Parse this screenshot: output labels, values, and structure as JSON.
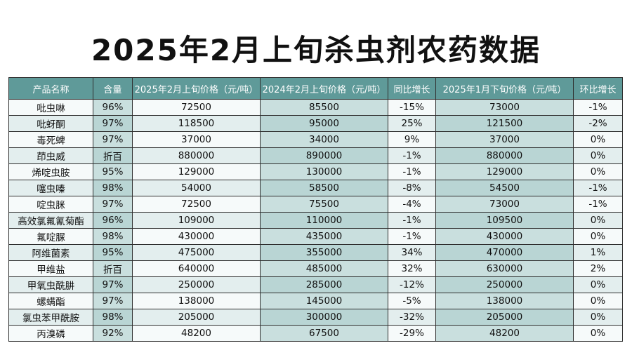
{
  "title": "2025年2月上旬杀虫剂农药数据",
  "columns": [
    "产品名称",
    "含量",
    "2025年2月上旬价格（元/吨）",
    "2024年2月上旬价格（元/吨）",
    "同比增长",
    "2025年1月下旬价格（元/吨）",
    "环比增长"
  ],
  "rows": [
    [
      "吡虫啉",
      "96%",
      "72500",
      "85500",
      "-15%",
      "73000",
      "-1%"
    ],
    [
      "吡蚜酮",
      "97%",
      "118500",
      "95000",
      "25%",
      "121500",
      "-2%"
    ],
    [
      "毒死蜱",
      "97%",
      "37000",
      "34000",
      "9%",
      "37000",
      "0%"
    ],
    [
      "茚虫威",
      "折百",
      "880000",
      "890000",
      "-1%",
      "880000",
      "0%"
    ],
    [
      "烯啶虫胺",
      "95%",
      "129000",
      "130000",
      "-1%",
      "129000",
      "0%"
    ],
    [
      "噻虫嗪",
      "98%",
      "54000",
      "58500",
      "-8%",
      "54500",
      "-1%"
    ],
    [
      "啶虫脒",
      "97%",
      "72500",
      "75500",
      "-4%",
      "73000",
      "-1%"
    ],
    [
      "高效氯氟氰菊酯",
      "96%",
      "109000",
      "110000",
      "-1%",
      "109500",
      "0%"
    ],
    [
      "氟啶脲",
      "98%",
      "430000",
      "435000",
      "-1%",
      "430000",
      "0%"
    ],
    [
      "阿维菌素",
      "95%",
      "475000",
      "355000",
      "34%",
      "470000",
      "1%"
    ],
    [
      "甲维盐",
      "折百",
      "640000",
      "485000",
      "32%",
      "630000",
      "2%"
    ],
    [
      "甲氧虫酰肼",
      "97%",
      "250000",
      "285000",
      "-12%",
      "250000",
      "0%"
    ],
    [
      "螺螨酯",
      "97%",
      "138000",
      "145000",
      "-5%",
      "138000",
      "0%"
    ],
    [
      "氯虫苯甲酰胺",
      "98%",
      "205000",
      "300000",
      "-32%",
      "205000",
      "0%"
    ],
    [
      "丙溴磷",
      "92%",
      "48200",
      "67500",
      "-29%",
      "48200",
      "0%"
    ]
  ]
}
